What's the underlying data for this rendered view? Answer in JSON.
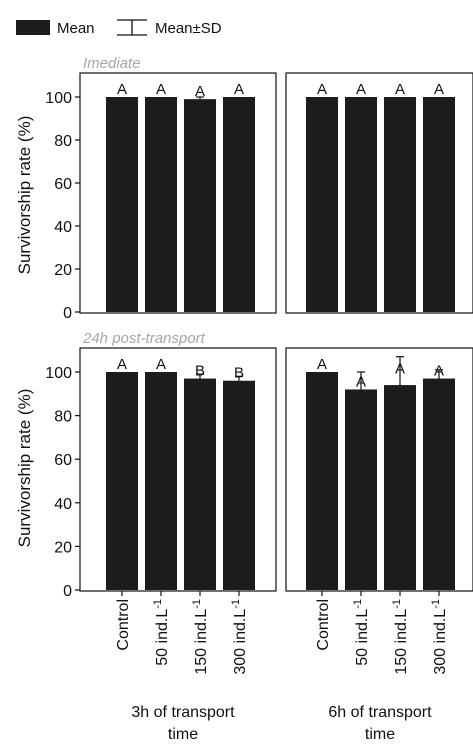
{
  "legend": {
    "mean_label": "Mean",
    "sd_label": "Mean±SD"
  },
  "rows": [
    {
      "label": "Imediate"
    },
    {
      "label": "24h post-transport"
    }
  ],
  "y_axis_label": "Survivorship rate (%)",
  "group_labels": [
    [
      "3h of transport",
      "time"
    ],
    [
      "6h of transport",
      "time"
    ]
  ],
  "colors": {
    "bar": "#1c1c1c",
    "row_label": "#a6a6a6"
  },
  "chart_data": [
    {
      "type": "bar",
      "row": "Imediate",
      "group": "3h of transport time",
      "categories": [
        "Control",
        "50 ind.L-1",
        "150 ind.L-1",
        "300 ind.L-1"
      ],
      "values": [
        100,
        100,
        99,
        100
      ],
      "sd": [
        0,
        0,
        1,
        0
      ],
      "letters": [
        "A",
        "A",
        "A",
        "A"
      ],
      "ylabel": "Survivorship rate (%)",
      "yticks": [
        0,
        20,
        40,
        60,
        80,
        100
      ],
      "ylim": [
        0,
        108
      ]
    },
    {
      "type": "bar",
      "row": "Imediate",
      "group": "6h of transport time",
      "categories": [
        "Control",
        "50 ind.L-1",
        "150 ind.L-1",
        "300 ind.L-1"
      ],
      "values": [
        100,
        100,
        100,
        100
      ],
      "sd": [
        0,
        0,
        0,
        0
      ],
      "letters": [
        "A",
        "A",
        "A",
        "A"
      ],
      "ylabel": "Survivorship rate (%)",
      "yticks": [
        0,
        20,
        40,
        60,
        80,
        100
      ],
      "ylim": [
        0,
        108
      ]
    },
    {
      "type": "bar",
      "row": "24h post-transport",
      "group": "3h of transport time",
      "categories": [
        "Control",
        "50 ind.L-1",
        "150 ind.L-1",
        "300 ind.L-1"
      ],
      "values": [
        100,
        100,
        97,
        96
      ],
      "sd": [
        0,
        0,
        2,
        2
      ],
      "letters": [
        "A",
        "A",
        "B",
        "B"
      ],
      "ylabel": "Survivorship rate (%)",
      "yticks": [
        0,
        20,
        40,
        60,
        80,
        100
      ],
      "ylim": [
        0,
        108
      ]
    },
    {
      "type": "bar",
      "row": "24h post-transport",
      "group": "6h of transport time",
      "categories": [
        "Control",
        "50 ind.L-1",
        "150 ind.L-1",
        "300 ind.L-1"
      ],
      "values": [
        100,
        92,
        94,
        97
      ],
      "sd": [
        0,
        8,
        13,
        4
      ],
      "letters": [
        "A",
        "A",
        "A",
        "A"
      ],
      "ylabel": "Survivorship rate (%)",
      "yticks": [
        0,
        20,
        40,
        60,
        80,
        100
      ],
      "ylim": [
        0,
        108
      ]
    }
  ]
}
